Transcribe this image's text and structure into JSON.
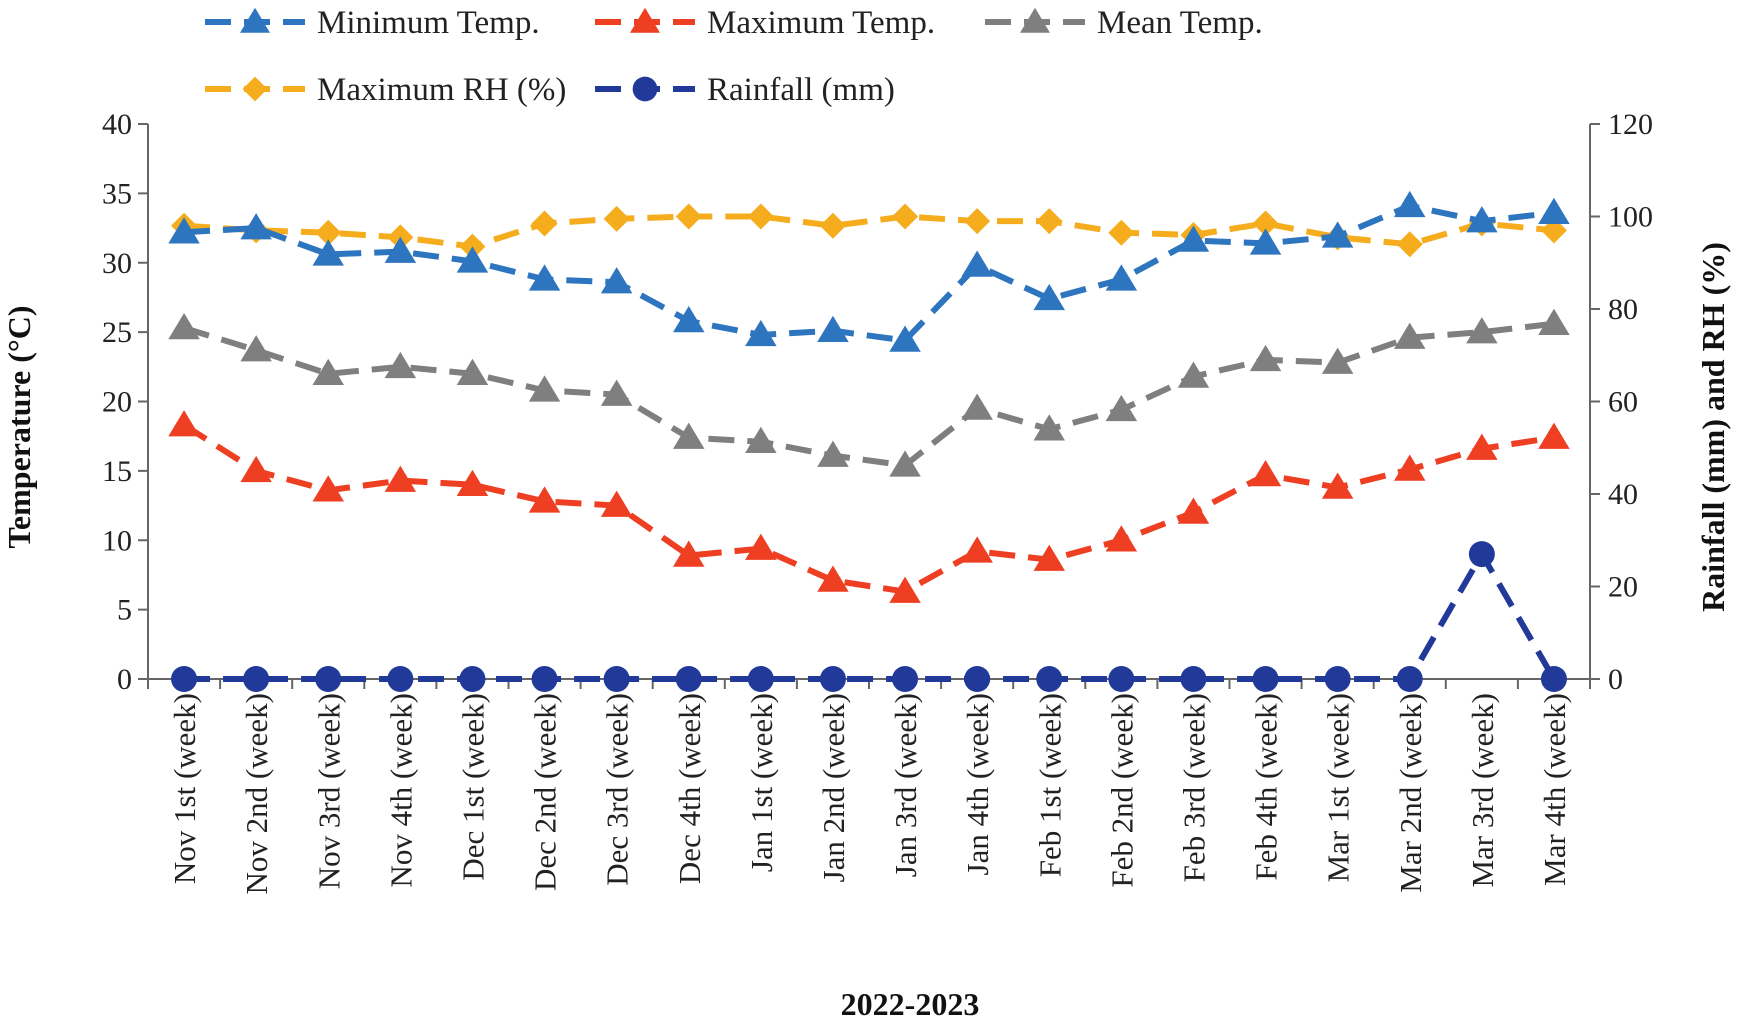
{
  "chart_data": {
    "type": "line",
    "xlabel": "2022-2023",
    "ylabel_left": "Temperature (°C)",
    "ylabel_right": "Rainfall (mm) and RH (%)",
    "ylim_left": [
      0,
      40
    ],
    "yticks_left": [
      0,
      5,
      10,
      15,
      20,
      25,
      30,
      35,
      40
    ],
    "ylim_right": [
      0,
      120
    ],
    "yticks_right": [
      0,
      20,
      40,
      60,
      80,
      100,
      120
    ],
    "grid": false,
    "legend_position": "top",
    "categories": [
      "Nov 1st (week)",
      "Nov 2nd (week)",
      "Nov 3rd (week)",
      "Nov 4th (week)",
      "Dec 1st (week)",
      "Dec 2nd (week)",
      "Dec 3rd (week)",
      "Dec 4th (week)",
      "Jan 1st (week)",
      "Jan 2nd (week)",
      "Jan 3rd (week)",
      "Jan 4th (week)",
      "Feb 1st (week)",
      "Feb 2nd  (week)",
      "Feb 3rd (week)",
      "Feb 4th (week)",
      "Mar 1st (week)",
      "Mar 2nd (week)",
      "Mar 3rd (week)",
      "Mar 4th (week)"
    ],
    "series": [
      {
        "name": "Minimum Temp.",
        "axis": "left",
        "marker": "triangle",
        "color": "#2e75c0",
        "values": [
          32.2,
          32.5,
          30.6,
          30.8,
          30.1,
          28.8,
          28.6,
          25.8,
          24.8,
          25.1,
          24.4,
          29.8,
          27.4,
          28.8,
          31.6,
          31.4,
          31.9,
          34.1,
          33.0,
          33.6
        ]
      },
      {
        "name": "Maximum Temp.",
        "axis": "left",
        "marker": "triangle",
        "color": "#ee3f23",
        "values": [
          18.3,
          15.0,
          13.6,
          14.3,
          14.0,
          12.8,
          12.5,
          8.9,
          9.4,
          7.1,
          6.3,
          9.2,
          8.6,
          10.0,
          12.0,
          14.7,
          13.8,
          15.1,
          16.6,
          17.4
        ]
      },
      {
        "name": "Mean Temp.",
        "axis": "left",
        "marker": "triangle",
        "color": "#7f7f7f",
        "values": [
          25.3,
          23.7,
          22.0,
          22.5,
          22.0,
          20.8,
          20.5,
          17.4,
          17.1,
          16.1,
          15.4,
          19.5,
          18.0,
          19.4,
          21.8,
          23.0,
          22.8,
          24.6,
          25.0,
          25.6
        ]
      },
      {
        "name": "Maximum RH (%)",
        "axis": "right",
        "marker": "diamond",
        "color": "#f5ad1e",
        "values": [
          98,
          97,
          96.5,
          95.5,
          93.5,
          98.5,
          99.5,
          100,
          100,
          98,
          100,
          99,
          99,
          96.5,
          96,
          98.5,
          95.5,
          94,
          98.5,
          97
        ]
      },
      {
        "name": "Rainfall (mm)",
        "axis": "right",
        "marker": "circle",
        "color": "#213a99",
        "values": [
          0,
          0,
          0,
          0,
          0,
          0,
          0,
          0,
          0,
          0,
          0,
          0,
          0,
          0,
          0,
          0,
          0,
          0,
          27,
          0
        ]
      }
    ]
  }
}
